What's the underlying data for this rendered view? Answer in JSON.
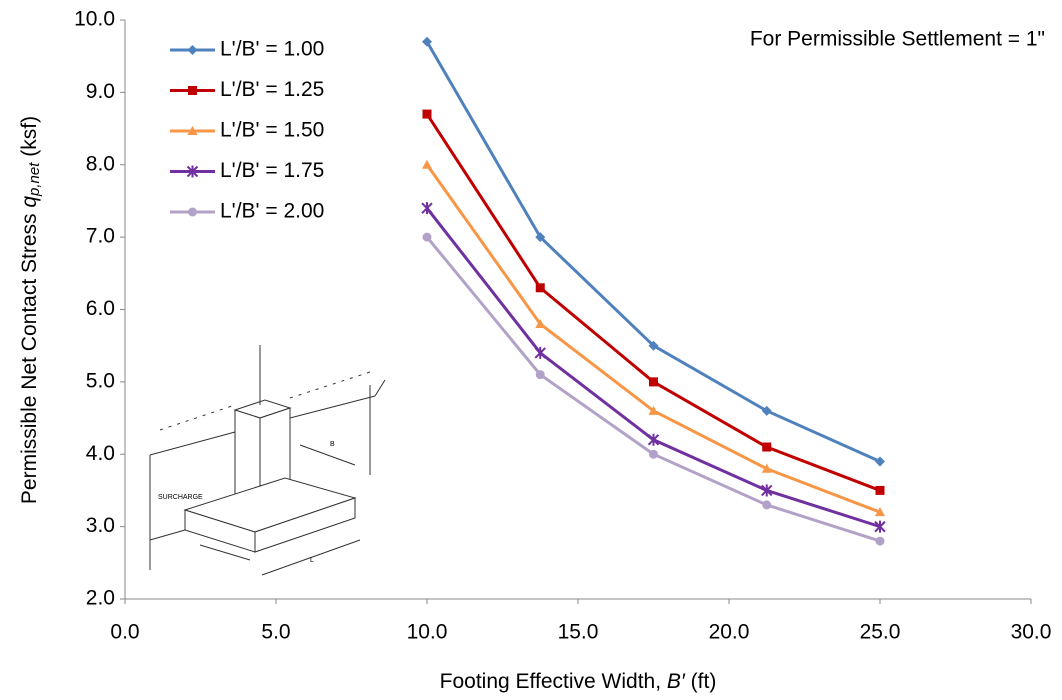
{
  "chart_data": {
    "type": "line",
    "annotation": "For Permissible Settlement = 1\"",
    "y_label_parts": [
      "Permissible Net Contact Stress ",
      "q",
      "p,net",
      " (ksf)"
    ],
    "x_label_parts": [
      "Footing Effective Width, ",
      "B′",
      " (ft)"
    ],
    "diagram_labels": [
      "SURCHARGE",
      "B",
      "L"
    ],
    "x": [
      10,
      13.75,
      17.5,
      21.25,
      25
    ],
    "series": [
      {
        "name": "L'/B' = 1.00",
        "color": "#4f81bd",
        "marker": "diamond",
        "values": [
          9.7,
          7.0,
          5.5,
          4.6,
          3.9
        ]
      },
      {
        "name": "L'/B' = 1.25",
        "color": "#c00000",
        "marker": "square",
        "values": [
          8.7,
          6.3,
          5.0,
          4.1,
          3.5
        ]
      },
      {
        "name": "L'/B' = 1.50",
        "color": "#f79646",
        "marker": "triangle",
        "values": [
          8.0,
          5.8,
          4.6,
          3.8,
          3.2
        ]
      },
      {
        "name": "L'/B' = 1.75",
        "color": "#7030a0",
        "marker": "asterisk",
        "values": [
          7.4,
          5.4,
          4.2,
          3.5,
          3.0
        ]
      },
      {
        "name": "L'/B' = 2.00",
        "color": "#b3a2c7",
        "marker": "circle",
        "values": [
          7.0,
          5.1,
          4.0,
          3.3,
          2.8
        ]
      }
    ],
    "xlim": [
      0,
      30
    ],
    "ylim": [
      2,
      10
    ],
    "xticks": [
      {
        "value": 0,
        "label": "0.0"
      },
      {
        "value": 5,
        "label": "5.0"
      },
      {
        "value": 10,
        "label": "10.0"
      },
      {
        "value": 15,
        "label": "15.0"
      },
      {
        "value": 20,
        "label": "20.0"
      },
      {
        "value": 25,
        "label": "25.0"
      },
      {
        "value": 30,
        "label": "30.0"
      }
    ],
    "yticks": [
      {
        "value": 2,
        "label": "2.0"
      },
      {
        "value": 3,
        "label": "3.0"
      },
      {
        "value": 4,
        "label": "4.0"
      },
      {
        "value": 5,
        "label": "5.0"
      },
      {
        "value": 6,
        "label": "6.0"
      },
      {
        "value": 7,
        "label": "7.0"
      },
      {
        "value": 8,
        "label": "8.0"
      },
      {
        "value": 9,
        "label": "9.0"
      },
      {
        "value": 10,
        "label": "10.0"
      }
    ],
    "grid": false,
    "legend": "top-left"
  }
}
